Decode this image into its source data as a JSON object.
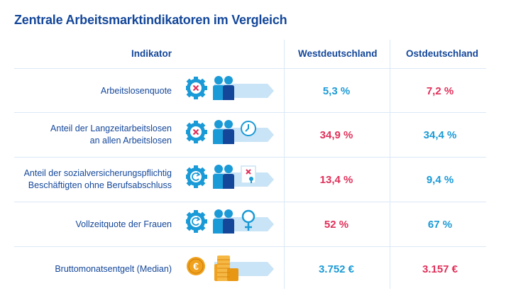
{
  "title": "Zentrale Arbeitsmarktindikatoren im Vergleich",
  "headers": {
    "indicator": "Indikator",
    "west": "Westdeutschland",
    "east": "Ostdeutschland"
  },
  "colors": {
    "primary": "#14479a",
    "good": "#1a9ad6",
    "bad": "#e0305a",
    "arrow": "#c9e4f6",
    "gear": "#1a9ad6",
    "coin": "#f0a21e"
  },
  "rows": [
    {
      "label_lines": [
        "Arbeitslosenquote"
      ],
      "west": "5,3 %",
      "east": "7,2 %",
      "west_color": "blue",
      "east_color": "red",
      "icons": [
        "gear-x-icon",
        "people-icon"
      ]
    },
    {
      "label_lines": [
        "Anteil der Langzeitarbeitslosen",
        "an allen Arbeitslosen"
      ],
      "west": "34,9  %",
      "east": "34,4 %",
      "west_color": "red",
      "east_color": "blue",
      "icons": [
        "gear-x-icon",
        "people-icon",
        "clock-icon"
      ]
    },
    {
      "label_lines": [
        "Anteil der sozialversicherungspflichtig",
        "Beschäftigten ohne Berufsabschluss"
      ],
      "west": "13,4 %",
      "east": "9,4 %",
      "west_color": "red",
      "east_color": "blue",
      "icons": [
        "gear-refresh-icon",
        "people-icon",
        "certificate-icon"
      ]
    },
    {
      "label_lines": [
        "Vollzeitquote der Frauen"
      ],
      "west": "52 %",
      "east": "67 %",
      "west_color": "red",
      "east_color": "blue",
      "icons": [
        "gear-refresh-icon",
        "people-icon",
        "female-icon"
      ]
    },
    {
      "label_lines": [
        "Bruttomonatsentgelt (Median)"
      ],
      "west": "3.752 €",
      "east": "3.157 €",
      "west_color": "blue",
      "east_color": "red",
      "icons": [
        "euro-coin-icon",
        "coin-stack-icon"
      ]
    }
  ]
}
